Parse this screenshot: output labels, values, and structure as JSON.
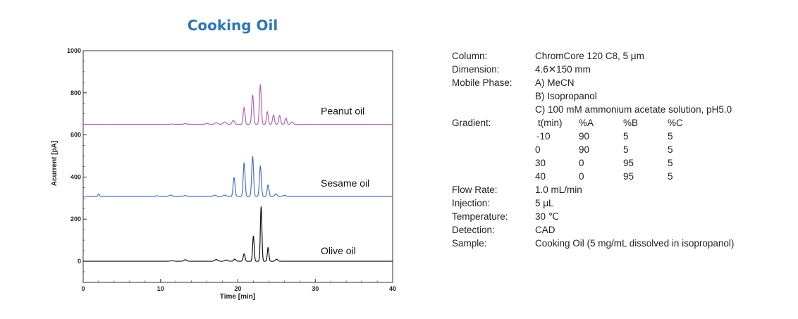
{
  "chart_data": {
    "type": "line",
    "title": "Cooking Oil",
    "xlabel": "Time [min]",
    "ylabel": "Acurrent [pA]",
    "xlim": [
      0,
      40
    ],
    "ylim": [
      -100,
      1000
    ],
    "xticks": [
      "0",
      "10",
      "20",
      "30",
      "40"
    ],
    "yticks": [
      "0",
      "200",
      "400",
      "600",
      "800",
      "1000"
    ],
    "grid": false,
    "series": [
      {
        "name": "Peanut oil",
        "color": "#b562b5",
        "baseline": 650,
        "peaks": [
          [
            11.5,
            2,
            0.15
          ],
          [
            13.2,
            4,
            0.2
          ],
          [
            16,
            5,
            0.2
          ],
          [
            17.2,
            8,
            0.2
          ],
          [
            18.3,
            12,
            0.2
          ],
          [
            19.4,
            20,
            0.15
          ],
          [
            20.8,
            80,
            0.12
          ],
          [
            21.9,
            140,
            0.12
          ],
          [
            22.9,
            190,
            0.12
          ],
          [
            23.8,
            60,
            0.12
          ],
          [
            24.6,
            45,
            0.12
          ],
          [
            25.4,
            42,
            0.12
          ],
          [
            26.2,
            30,
            0.12
          ],
          [
            27,
            12,
            0.15
          ]
        ]
      },
      {
        "name": "Sesame oil",
        "color": "#4a72b8",
        "baseline": 308,
        "peaks": [
          [
            2.0,
            12,
            0.1
          ],
          [
            9.5,
            3,
            0.2
          ],
          [
            11.3,
            6,
            0.2
          ],
          [
            13.2,
            4,
            0.2
          ],
          [
            17,
            5,
            0.2
          ],
          [
            18.3,
            6,
            0.2
          ],
          [
            19.5,
            90,
            0.12
          ],
          [
            20.8,
            160,
            0.12
          ],
          [
            21.9,
            190,
            0.12
          ],
          [
            22.9,
            145,
            0.12
          ],
          [
            23.9,
            55,
            0.12
          ],
          [
            24.9,
            12,
            0.15
          ],
          [
            26,
            5,
            0.2
          ]
        ]
      },
      {
        "name": "Olive oil",
        "color": "#111111",
        "baseline": 0,
        "peaks": [
          [
            11.5,
            3,
            0.2
          ],
          [
            13.2,
            7,
            0.2
          ],
          [
            17.2,
            8,
            0.2
          ],
          [
            18.5,
            6,
            0.2
          ],
          [
            19.6,
            10,
            0.15
          ],
          [
            20.8,
            35,
            0.12
          ],
          [
            22.0,
            120,
            0.1
          ],
          [
            23.0,
            260,
            0.1
          ],
          [
            23.9,
            65,
            0.1
          ],
          [
            25,
            10,
            0.15
          ]
        ]
      }
    ]
  },
  "conditions": {
    "column_label": "Column:",
    "column_value": "ChromCore 120 C8, 5 μm",
    "dimension_label": "Dimension:",
    "dimension_value": "4.6✕150 mm",
    "mobile_phase_label": "Mobile Phase:",
    "mobile_phase_a": "A) MeCN",
    "mobile_phase_b": "B) Isopropanol",
    "mobile_phase_c": "C) 100 mM ammonium acetate solution, pH5.0",
    "gradient_label": "Gradient:",
    "gradient_header": [
      "t(min)",
      "%A",
      "%B",
      "%C"
    ],
    "gradient_rows": [
      [
        "-10",
        "90",
        "5",
        "5"
      ],
      [
        "0",
        "90",
        "5",
        "5"
      ],
      [
        "30",
        "0",
        "95",
        "5"
      ],
      [
        "40",
        "0",
        "95",
        "5"
      ]
    ],
    "flow_rate_label": "Flow Rate:",
    "flow_rate_value": "1.0 mL/min",
    "injection_label": "Injection:",
    "injection_value": "5 μL",
    "temperature_label": "Temperature:",
    "temperature_value": "30 ℃",
    "detection_label": "Detection:",
    "detection_value": "CAD",
    "sample_label": "Sample:",
    "sample_value": "Cooking Oil (5 mg/mL dissolved in isopropanol)"
  }
}
